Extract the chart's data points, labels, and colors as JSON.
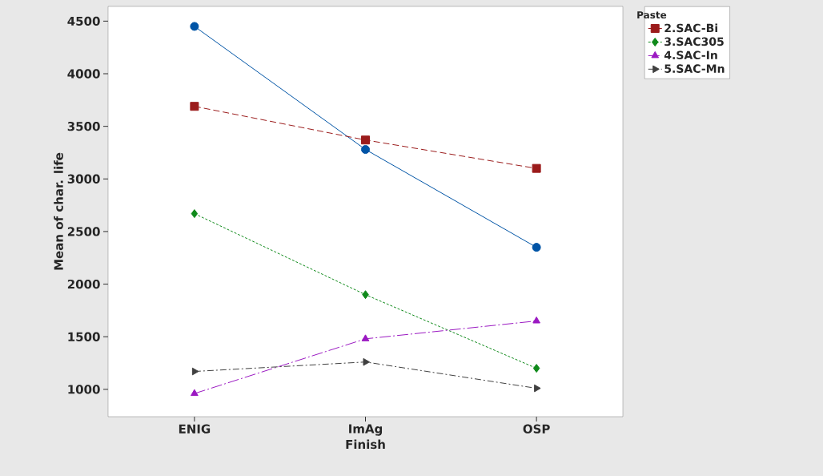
{
  "chart_data": {
    "type": "line",
    "xlabel": "Finish",
    "ylabel": "Mean of char. life",
    "categories": [
      "ENIG",
      "ImAg",
      "OSP"
    ],
    "ylim": [
      740,
      4640
    ],
    "yticks": [
      1000,
      1500,
      2000,
      2500,
      3000,
      3500,
      4000,
      4500
    ],
    "grid": false,
    "legend": "top right",
    "legend_title": "Paste",
    "series": [
      {
        "color": "#0054a6",
        "marker": "circle",
        "line_style": "solid",
        "values": [
          4450,
          3280,
          2350
        ]
      },
      {
        "name": "2.SAC-Bi",
        "color": "#9b1b1b",
        "marker": "square",
        "line_style": "dashed",
        "values": [
          3690,
          3370,
          3100
        ]
      },
      {
        "name": "3.SAC305",
        "color": "#0f8a1a",
        "marker": "diamond",
        "line_style": "dotted",
        "values": [
          2670,
          1900,
          1200
        ]
      },
      {
        "name": "4.SAC-In",
        "color": "#9b19c2",
        "marker": "triangle",
        "line_style": "dashdot",
        "values": [
          960,
          1480,
          1650
        ]
      },
      {
        "name": "5.SAC-Mn",
        "color": "#404040",
        "marker": "triangle right",
        "line_style": "dashdotdot",
        "values": [
          1170,
          1260,
          1010
        ]
      }
    ]
  }
}
